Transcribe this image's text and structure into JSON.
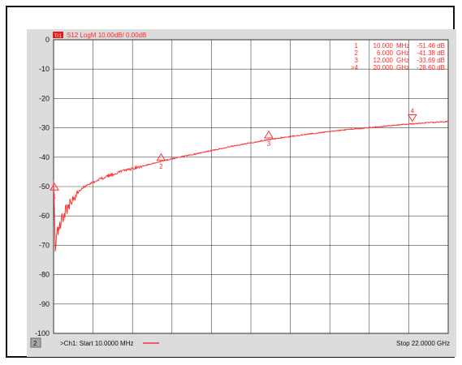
{
  "channel": {
    "trace_badge": "Tr1",
    "trace_title": "S12 LogM 10.00dB/ 0.00dB",
    "window_number": "2",
    "channel_label": ">Ch1: Start 10.0000 MHz",
    "stop_label": "Stop 22.0000 GHz"
  },
  "marker_table": [
    {
      "id": "1",
      "freq": "10.000",
      "unit": "MHz",
      "value": "-51.46 dB"
    },
    {
      "id": "2",
      "freq": "6.000",
      "unit": "GHz",
      "value": "-41.38 dB"
    },
    {
      "id": "3",
      "freq": "12.000",
      "unit": "GHz",
      "value": "-33.69 dB"
    },
    {
      "id": ">4",
      "freq": "20.000",
      "unit": "GHz",
      "value": "-28.60 dB"
    }
  ],
  "colors": {
    "trace": "#ff3030",
    "grid": "#444444",
    "background": "#dcdcdc",
    "text": "#111111"
  },
  "chart_data": {
    "type": "line",
    "title": "S12 LogM 10.00dB/ 0.00dB",
    "xlabel": "",
    "ylabel": "",
    "xlim_ghz": [
      0.01,
      22.0
    ],
    "ylim": [
      -100,
      0
    ],
    "yticks": [
      "0",
      "-10",
      "-20",
      "-30",
      "-40",
      "-50",
      "-60",
      "-70",
      "-80",
      "-90",
      "-100"
    ],
    "grid": true,
    "series": [
      {
        "x_ghz": [
          0.01,
          0.1,
          0.2,
          0.3,
          0.4,
          0.5,
          0.7,
          1.0,
          1.5,
          2.0,
          3.0,
          4.0,
          5.0,
          6.0,
          7.0,
          8.0,
          10.0,
          12.0,
          14.0,
          16.0,
          18.0,
          20.0,
          22.0
        ],
        "y_db": [
          -52,
          -70,
          -66,
          -64,
          -62,
          -60,
          -58,
          -55,
          -51,
          -49,
          -46.5,
          -44.5,
          -43,
          -41.4,
          -40,
          -38.8,
          -36.2,
          -34.0,
          -32.3,
          -30.8,
          -29.7,
          -28.6,
          -27.8
        ]
      }
    ],
    "markers": [
      {
        "label": "1",
        "x_ghz": 0.01,
        "y_db": -51.46
      },
      {
        "label": "2",
        "x_ghz": 6.0,
        "y_db": -41.38
      },
      {
        "label": "3",
        "x_ghz": 12.0,
        "y_db": -33.69
      },
      {
        "label": "4",
        "x_ghz": 20.0,
        "y_db": -28.6
      }
    ]
  }
}
